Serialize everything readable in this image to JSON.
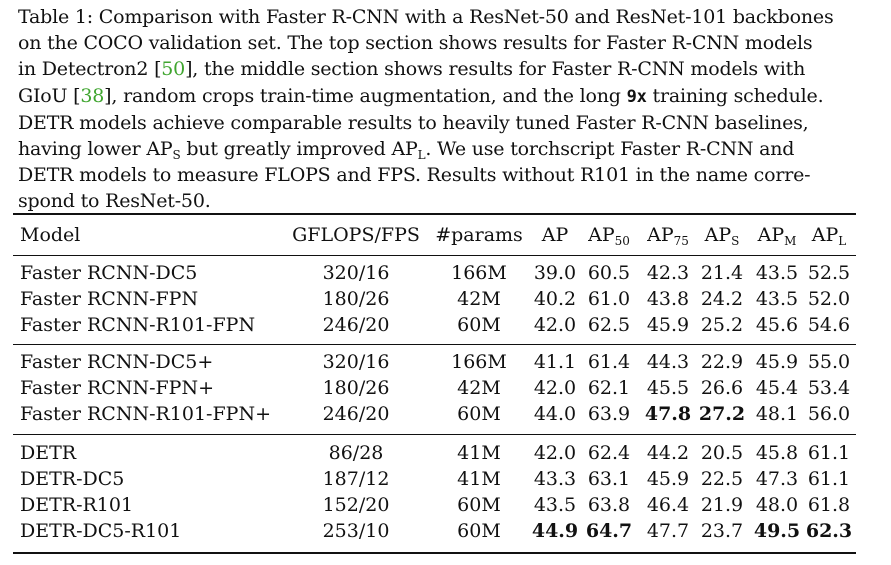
{
  "caption": {
    "lines": [
      [
        "Table 1: Comparison with Faster R-CNN with a ResNet-50 and ResNet-101 backbones"
      ],
      [
        "on the COCO validation set. The top section shows results for Faster R-CNN models"
      ],
      [
        "in Detectron2 [",
        "50",
        "], the middle section shows results for Faster R-CNN models with"
      ],
      [
        "GIoU [",
        "38",
        "], random crops train-time augmentation, and the long ",
        "9x",
        " training schedule."
      ],
      [
        "DETR models achieve comparable results to heavily tuned Faster R-CNN baselines,"
      ],
      [
        "having lower AP",
        "S",
        " but greatly improved AP",
        "L",
        ". We use torchscript Faster R-CNN and"
      ],
      [
        "DETR models to measure FLOPS and FPS. Results without R101 in the name corre-"
      ],
      [
        "spond to ResNet-50."
      ]
    ]
  },
  "table": {
    "headers": {
      "model": "Model",
      "gflops_fps": "GFLOPS/FPS",
      "params": "#params",
      "ap": "AP",
      "ap50": [
        "AP",
        "50"
      ],
      "ap75": [
        "AP",
        "75"
      ],
      "aps": [
        "AP",
        "S"
      ],
      "apm": [
        "AP",
        "M"
      ],
      "apl": [
        "AP",
        "L"
      ]
    },
    "sections": [
      [
        {
          "model": "Faster RCNN-DC5",
          "gflops_fps": "320/16",
          "params": "166M",
          "ap": "39.0",
          "ap50": "60.5",
          "ap75": "42.3",
          "aps": "21.4",
          "apm": "43.5",
          "apl": "52.5",
          "bold": []
        },
        {
          "model": "Faster RCNN-FPN",
          "gflops_fps": "180/26",
          "params": "42M",
          "ap": "40.2",
          "ap50": "61.0",
          "ap75": "43.8",
          "aps": "24.2",
          "apm": "43.5",
          "apl": "52.0",
          "bold": []
        },
        {
          "model": "Faster RCNN-R101-FPN",
          "gflops_fps": "246/20",
          "params": "60M",
          "ap": "42.0",
          "ap50": "62.5",
          "ap75": "45.9",
          "aps": "25.2",
          "apm": "45.6",
          "apl": "54.6",
          "bold": []
        }
      ],
      [
        {
          "model": "Faster RCNN-DC5+",
          "gflops_fps": "320/16",
          "params": "166M",
          "ap": "41.1",
          "ap50": "61.4",
          "ap75": "44.3",
          "aps": "22.9",
          "apm": "45.9",
          "apl": "55.0",
          "bold": []
        },
        {
          "model": "Faster RCNN-FPN+",
          "gflops_fps": "180/26",
          "params": "42M",
          "ap": "42.0",
          "ap50": "62.1",
          "ap75": "45.5",
          "aps": "26.6",
          "apm": "45.4",
          "apl": "53.4",
          "bold": []
        },
        {
          "model": "Faster RCNN-R101-FPN+",
          "gflops_fps": "246/20",
          "params": "60M",
          "ap": "44.0",
          "ap50": "63.9",
          "ap75": "47.8",
          "aps": "27.2",
          "apm": "48.1",
          "apl": "56.0",
          "bold": [
            "ap75",
            "aps"
          ]
        }
      ],
      [
        {
          "model": "DETR",
          "gflops_fps": "86/28",
          "params": "41M",
          "ap": "42.0",
          "ap50": "62.4",
          "ap75": "44.2",
          "aps": "20.5",
          "apm": "45.8",
          "apl": "61.1",
          "bold": []
        },
        {
          "model": "DETR-DC5",
          "gflops_fps": "187/12",
          "params": "41M",
          "ap": "43.3",
          "ap50": "63.1",
          "ap75": "45.9",
          "aps": "22.5",
          "apm": "47.3",
          "apl": "61.1",
          "bold": []
        },
        {
          "model": "DETR-R101",
          "gflops_fps": "152/20",
          "params": "60M",
          "ap": "43.5",
          "ap50": "63.8",
          "ap75": "46.4",
          "aps": "21.9",
          "apm": "48.0",
          "apl": "61.8",
          "bold": []
        },
        {
          "model": "DETR-DC5-R101",
          "gflops_fps": "253/10",
          "params": "60M",
          "ap": "44.9",
          "ap50": "64.7",
          "ap75": "47.7",
          "aps": "23.7",
          "apm": "49.5",
          "apl": "62.3",
          "bold": [
            "ap",
            "ap50",
            "apm",
            "apl"
          ]
        }
      ]
    ]
  }
}
